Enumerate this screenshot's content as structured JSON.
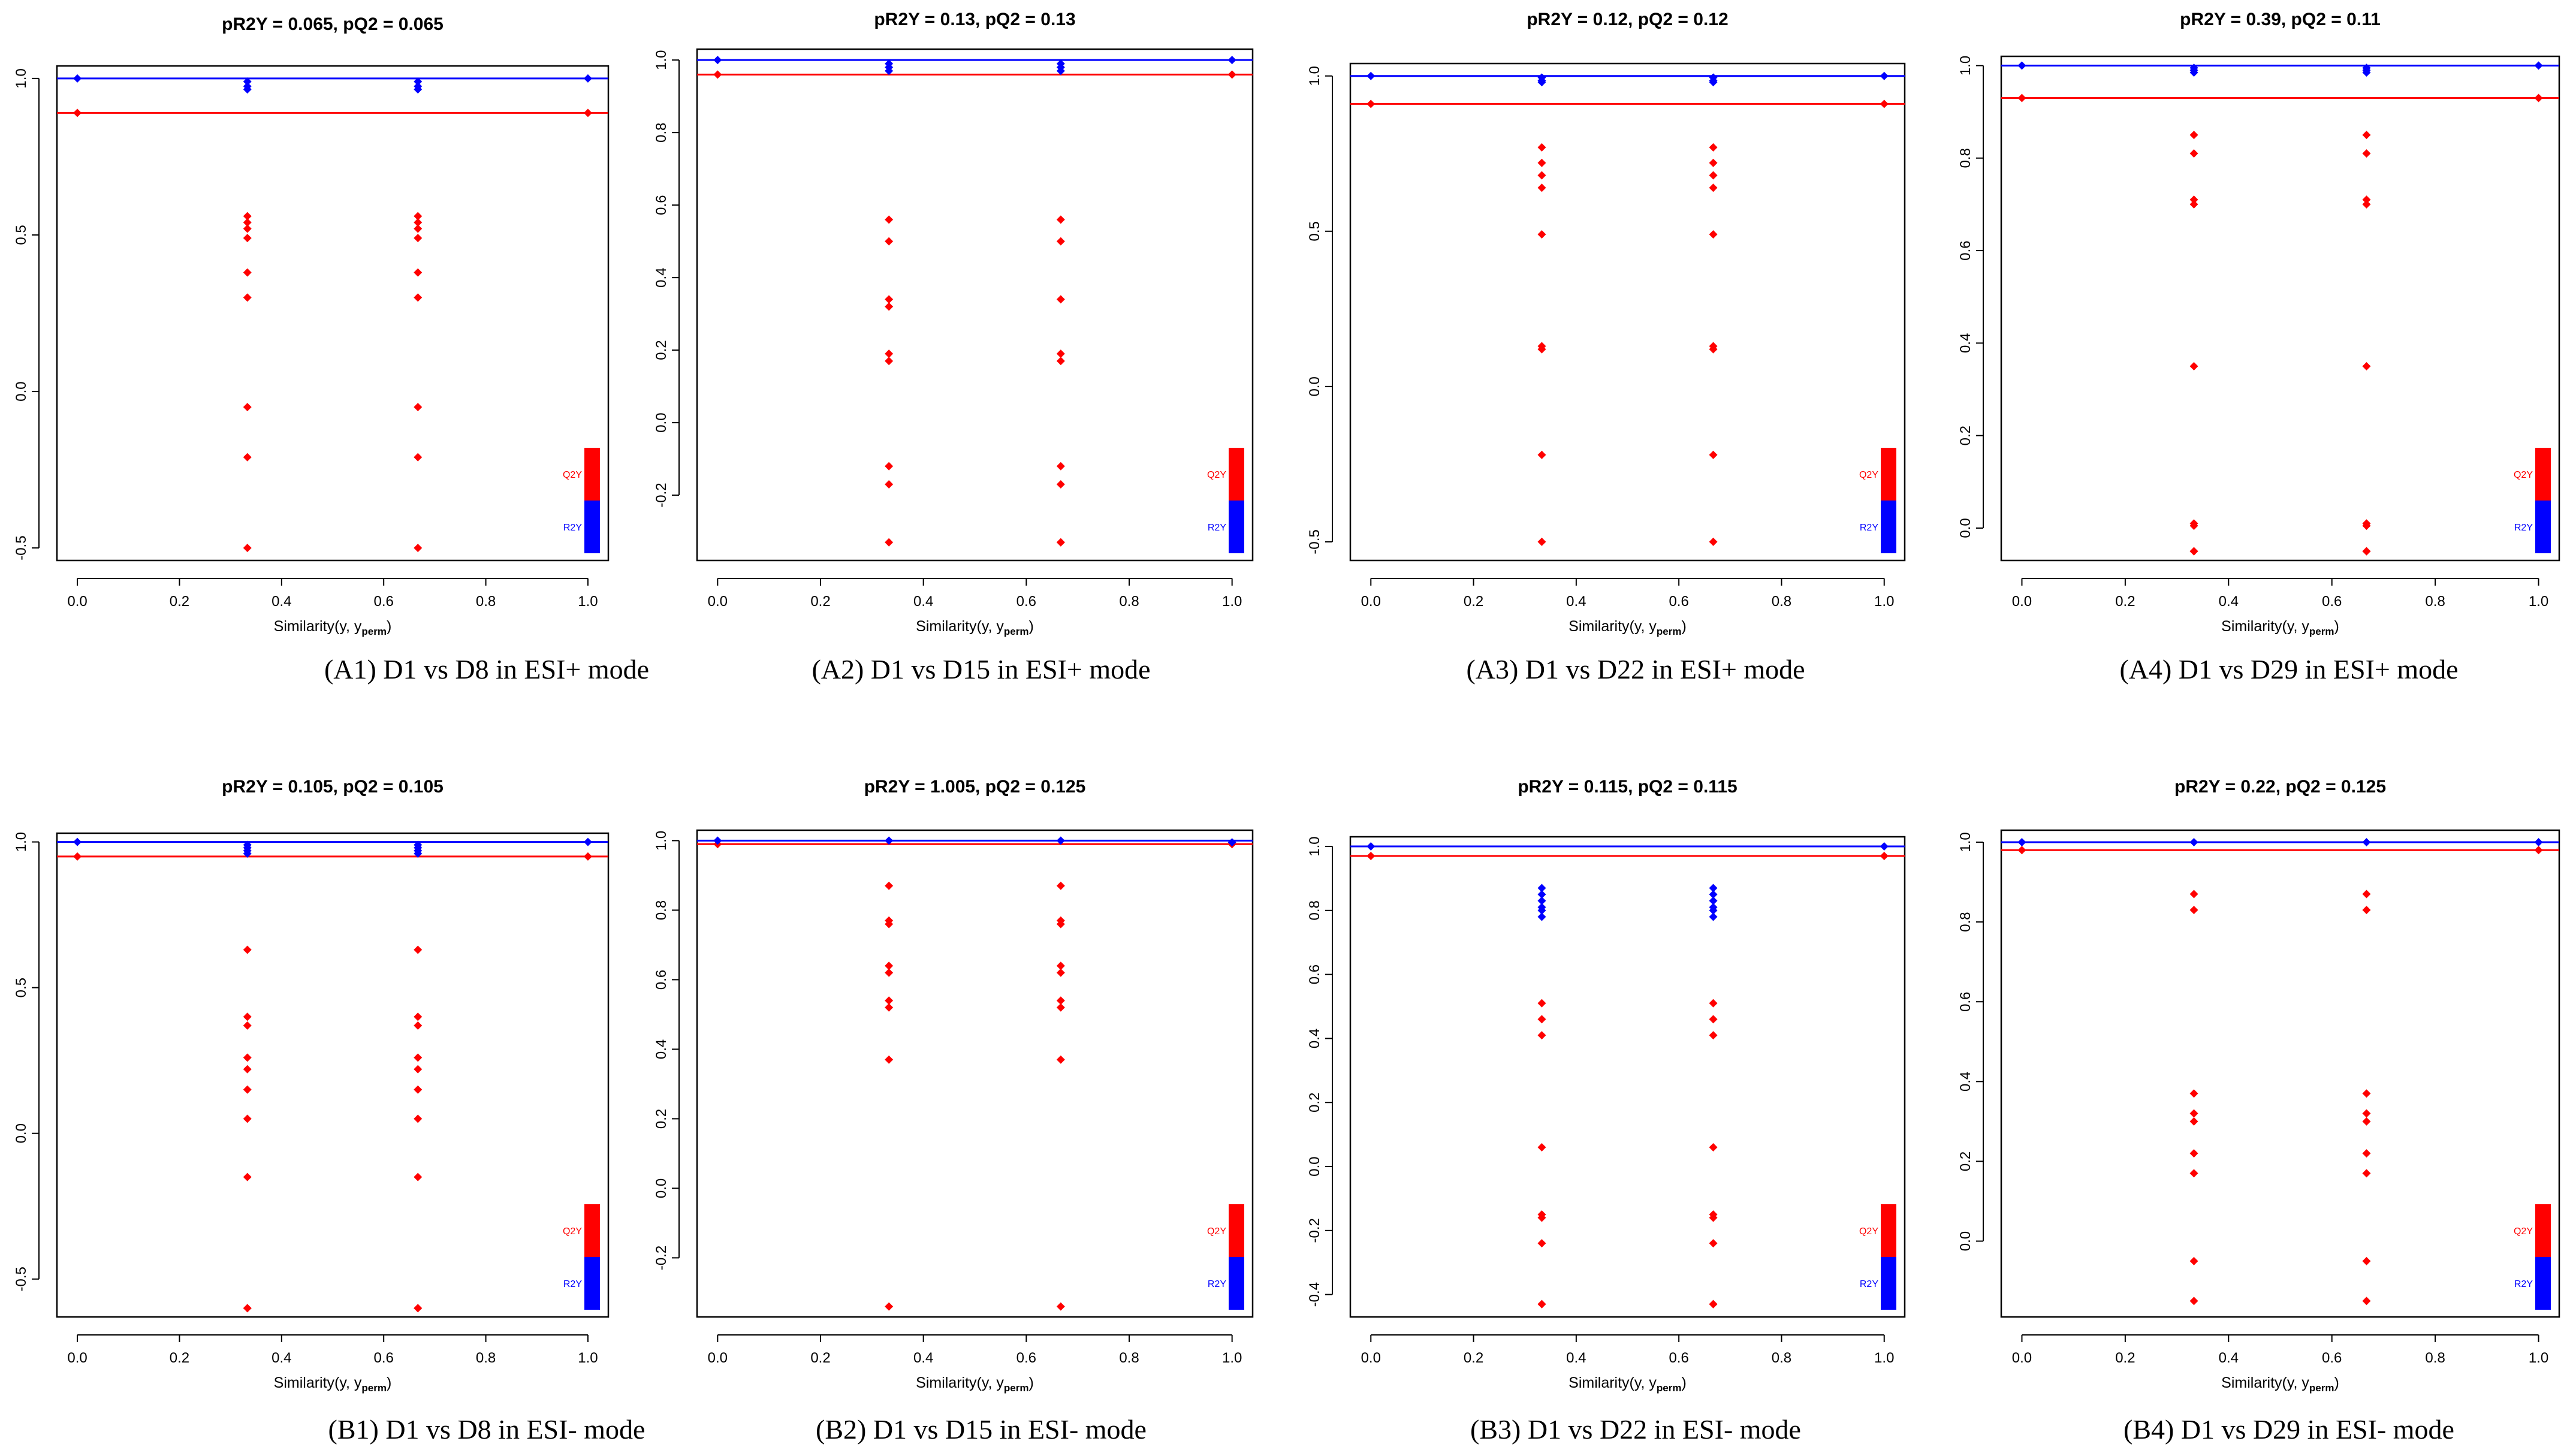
{
  "axis_label_base": "Similarity(y, y",
  "axis_label_sub": "perm",
  "axis_label_close": ")",
  "legend": {
    "q2y": "Q2Y",
    "r2y": "R2Y"
  },
  "colors": {
    "r2y": "#0000ff",
    "q2y": "#ff0000",
    "axis": "#000000"
  },
  "chart_data": [
    {
      "type": "scatter",
      "id": "A1",
      "title": "pR2Y = 0.065, pQ2 = 0.065",
      "caption": "(A1) D1 vs D8 in ESI+ mode",
      "xlabel": "Similarity(y, y_perm)",
      "xlim": [
        -0.04,
        1.04
      ],
      "ylim": [
        -0.54,
        1.04
      ],
      "xticks": [
        0,
        0.2,
        0.4,
        0.6,
        0.8,
        1
      ],
      "xtick_labels": [
        "0.0",
        "0.2",
        "0.4",
        "0.6",
        "0.8",
        "1.0"
      ],
      "yticks": [
        -0.5,
        0,
        0.5,
        1
      ],
      "ytick_labels": [
        "-0.5",
        "0.0",
        "0.5",
        "1.0"
      ],
      "r2y_line": 1.0,
      "q2y_line": 0.89,
      "r2y": {
        "x": [
          0,
          0.333,
          0.333,
          0.333,
          0.667,
          0.667,
          0.667,
          1
        ],
        "y": [
          1.0,
          0.99,
          0.975,
          0.965,
          0.99,
          0.975,
          0.965,
          1.0
        ]
      },
      "q2y": {
        "x": [
          0,
          0.333,
          0.333,
          0.333,
          0.333,
          0.333,
          0.333,
          0.333,
          0.333,
          0.333,
          0.667,
          0.667,
          0.667,
          0.667,
          0.667,
          0.667,
          0.667,
          0.667,
          0.667,
          1
        ],
        "y": [
          0.89,
          0.56,
          0.54,
          0.52,
          0.49,
          0.38,
          0.3,
          -0.05,
          -0.21,
          -0.5,
          0.56,
          0.54,
          0.52,
          0.49,
          0.38,
          0.3,
          -0.05,
          -0.21,
          -0.5,
          0.89
        ]
      }
    },
    {
      "type": "scatter",
      "id": "A2",
      "title": "pR2Y = 0.13, pQ2 = 0.13",
      "caption": "(A2) D1 vs D15 in ESI+ mode",
      "xlabel": "Similarity(y, y_perm)",
      "xlim": [
        -0.04,
        1.04
      ],
      "ylim": [
        -0.38,
        1.03
      ],
      "xticks": [
        0,
        0.2,
        0.4,
        0.6,
        0.8,
        1
      ],
      "xtick_labels": [
        "0.0",
        "0.2",
        "0.4",
        "0.6",
        "0.8",
        "1.0"
      ],
      "yticks": [
        -0.2,
        0,
        0.2,
        0.4,
        0.6,
        0.8,
        1
      ],
      "ytick_labels": [
        "-0.2",
        "0.0",
        "0.2",
        "0.4",
        "0.6",
        "0.8",
        "1.0"
      ],
      "r2y_line": 1.0,
      "q2y_line": 0.96,
      "r2y": {
        "x": [
          0,
          0.333,
          0.333,
          0.333,
          0.667,
          0.667,
          0.667,
          1
        ],
        "y": [
          1.0,
          0.99,
          0.98,
          0.97,
          0.99,
          0.98,
          0.97,
          1.0
        ]
      },
      "q2y": {
        "x": [
          0,
          0.333,
          0.333,
          0.333,
          0.333,
          0.333,
          0.333,
          0.333,
          0.333,
          0.333,
          0.667,
          0.667,
          0.667,
          0.667,
          0.667,
          0.667,
          0.667,
          0.667,
          0.667,
          1
        ],
        "y": [
          0.96,
          0.56,
          0.5,
          0.34,
          0.32,
          0.19,
          0.17,
          -0.12,
          -0.17,
          -0.33,
          0.56,
          0.5,
          0.34,
          0.19,
          0.17,
          -0.12,
          -0.17,
          -0.33,
          -0.33,
          0.96
        ]
      }
    },
    {
      "type": "scatter",
      "id": "A3",
      "title": "pR2Y = 0.12, pQ2 = 0.12",
      "caption": "(A3) D1 vs D22 in ESI+ mode",
      "xlabel": "Similarity(y, y_perm)",
      "xlim": [
        -0.04,
        1.04
      ],
      "ylim": [
        -0.56,
        1.04
      ],
      "xticks": [
        0,
        0.2,
        0.4,
        0.6,
        0.8,
        1
      ],
      "xtick_labels": [
        "0.0",
        "0.2",
        "0.4",
        "0.6",
        "0.8",
        "1.0"
      ],
      "yticks": [
        -0.5,
        0,
        0.5,
        1
      ],
      "ytick_labels": [
        "-0.5",
        "0.0",
        "0.5",
        "1.0"
      ],
      "r2y_line": 1.0,
      "q2y_line": 0.91,
      "r2y": {
        "x": [
          0,
          0.333,
          0.333,
          0.333,
          0.667,
          0.667,
          0.667,
          1
        ],
        "y": [
          1.0,
          0.995,
          0.985,
          0.98,
          0.995,
          0.985,
          0.98,
          1.0
        ]
      },
      "q2y": {
        "x": [
          0,
          0.333,
          0.333,
          0.333,
          0.333,
          0.333,
          0.333,
          0.333,
          0.333,
          0.333,
          0.667,
          0.667,
          0.667,
          0.667,
          0.667,
          0.667,
          0.667,
          0.667,
          0.667,
          1
        ],
        "y": [
          0.91,
          0.77,
          0.72,
          0.68,
          0.64,
          0.49,
          0.13,
          0.12,
          -0.22,
          -0.5,
          0.77,
          0.72,
          0.68,
          0.64,
          0.49,
          0.13,
          0.12,
          -0.22,
          -0.5,
          0.91
        ]
      }
    },
    {
      "type": "scatter",
      "id": "A4",
      "title": "pR2Y = 0.39, pQ2 = 0.11",
      "caption": "(A4) D1 vs D29 in ESI+ mode",
      "xlabel": "Similarity(y, y_perm)",
      "xlim": [
        -0.04,
        1.04
      ],
      "ylim": [
        -0.07,
        1.02
      ],
      "xticks": [
        0,
        0.2,
        0.4,
        0.6,
        0.8,
        1
      ],
      "xtick_labels": [
        "0.0",
        "0.2",
        "0.4",
        "0.6",
        "0.8",
        "1.0"
      ],
      "yticks": [
        0,
        0.2,
        0.4,
        0.6,
        0.8,
        1
      ],
      "ytick_labels": [
        "0.0",
        "0.2",
        "0.4",
        "0.6",
        "0.8",
        "1.0"
      ],
      "r2y_line": 1.0,
      "q2y_line": 0.93,
      "r2y": {
        "x": [
          0,
          0.333,
          0.333,
          0.333,
          0.667,
          0.667,
          0.667,
          1
        ],
        "y": [
          1.0,
          0.995,
          0.99,
          0.985,
          0.995,
          0.99,
          0.985,
          1.0
        ]
      },
      "q2y": {
        "x": [
          0,
          0.333,
          0.333,
          0.333,
          0.333,
          0.333,
          0.333,
          0.333,
          0.333,
          0.333,
          0.667,
          0.667,
          0.667,
          0.667,
          0.667,
          0.667,
          0.667,
          0.667,
          0.667,
          1
        ],
        "y": [
          0.93,
          0.85,
          0.81,
          0.71,
          0.7,
          0.35,
          0.01,
          0.005,
          -0.05,
          -0.05,
          0.85,
          0.81,
          0.71,
          0.7,
          0.35,
          0.01,
          0.005,
          -0.05,
          -0.05,
          0.93
        ]
      }
    },
    {
      "type": "scatter",
      "id": "B1",
      "title": "pR2Y = 0.105, pQ2 = 0.105",
      "caption": "(B1) D1 vs D8 in ESI- mode",
      "xlabel": "Similarity(y, y_perm)",
      "xlim": [
        -0.04,
        1.04
      ],
      "ylim": [
        -0.63,
        1.03
      ],
      "xticks": [
        0,
        0.2,
        0.4,
        0.6,
        0.8,
        1
      ],
      "xtick_labels": [
        "0.0",
        "0.2",
        "0.4",
        "0.6",
        "0.8",
        "1.0"
      ],
      "yticks": [
        -0.5,
        0,
        0.5,
        1
      ],
      "ytick_labels": [
        "-0.5",
        "0.0",
        "0.5",
        "1.0"
      ],
      "r2y_line": 1.0,
      "q2y_line": 0.95,
      "r2y": {
        "x": [
          0,
          0.333,
          0.333,
          0.333,
          0.333,
          0.667,
          0.667,
          0.667,
          0.667,
          1
        ],
        "y": [
          1.0,
          0.99,
          0.98,
          0.97,
          0.96,
          0.99,
          0.98,
          0.97,
          0.96,
          1.0
        ]
      },
      "q2y": {
        "x": [
          0,
          0.333,
          0.333,
          0.333,
          0.333,
          0.333,
          0.333,
          0.333,
          0.333,
          0.333,
          0.333,
          0.667,
          0.667,
          0.667,
          0.667,
          0.667,
          0.667,
          0.667,
          0.667,
          0.667,
          0.667,
          1
        ],
        "y": [
          0.95,
          0.63,
          0.4,
          0.37,
          0.26,
          0.22,
          0.15,
          0.05,
          -0.15,
          -0.6,
          -0.6,
          0.63,
          0.4,
          0.37,
          0.26,
          0.22,
          0.15,
          0.05,
          -0.15,
          -0.6,
          -0.6,
          0.95
        ]
      }
    },
    {
      "type": "scatter",
      "id": "B2",
      "title": "pR2Y = 1.005, pQ2 = 0.125",
      "caption": "(B2) D1 vs D15 in ESI- mode",
      "xlabel": "Similarity(y, y_perm)",
      "xlim": [
        -0.04,
        1.04
      ],
      "ylim": [
        -0.37,
        1.03
      ],
      "xticks": [
        0,
        0.2,
        0.4,
        0.6,
        0.8,
        1
      ],
      "xtick_labels": [
        "0.0",
        "0.2",
        "0.4",
        "0.6",
        "0.8",
        "1.0"
      ],
      "yticks": [
        -0.2,
        0,
        0.2,
        0.4,
        0.6,
        0.8,
        1
      ],
      "ytick_labels": [
        "-0.2",
        "0.0",
        "0.2",
        "0.4",
        "0.6",
        "0.8",
        "1.0"
      ],
      "r2y_line": 1.0,
      "q2y_line": 0.99,
      "r2y": {
        "x": [
          0,
          0.333,
          0.667,
          1
        ],
        "y": [
          1.0,
          1.0,
          1.0,
          0.995
        ]
      },
      "q2y": {
        "x": [
          0,
          0.333,
          0.333,
          0.333,
          0.333,
          0.333,
          0.333,
          0.333,
          0.333,
          0.333,
          0.667,
          0.667,
          0.667,
          0.667,
          0.667,
          0.667,
          0.667,
          0.667,
          0.667,
          1
        ],
        "y": [
          0.99,
          0.87,
          0.77,
          0.76,
          0.64,
          0.62,
          0.54,
          0.52,
          0.37,
          -0.34,
          0.87,
          0.77,
          0.76,
          0.64,
          0.62,
          0.54,
          0.52,
          0.37,
          -0.34,
          0.99
        ]
      }
    },
    {
      "type": "scatter",
      "id": "B3",
      "title": "pR2Y = 0.115, pQ2 = 0.115",
      "caption": "(B3) D1 vs D22 in ESI- mode",
      "xlabel": "Similarity(y, y_perm)",
      "xlim": [
        -0.04,
        1.04
      ],
      "ylim": [
        -0.47,
        1.03
      ],
      "xticks": [
        0,
        0.2,
        0.4,
        0.6,
        0.8,
        1
      ],
      "xtick_labels": [
        "0.0",
        "0.2",
        "0.4",
        "0.6",
        "0.8",
        "1.0"
      ],
      "yticks": [
        -0.4,
        -0.2,
        0,
        0.2,
        0.4,
        0.6,
        0.8,
        1
      ],
      "ytick_labels": [
        "-0.4",
        "-0.2",
        "0.0",
        "0.2",
        "0.4",
        "0.6",
        "0.8",
        "1.0"
      ],
      "r2y_line": 1.0,
      "q2y_line": 0.97,
      "r2y": {
        "x": [
          0,
          0.333,
          0.333,
          0.333,
          0.333,
          0.333,
          0.333,
          0.667,
          0.667,
          0.667,
          0.667,
          0.667,
          0.667,
          1
        ],
        "y": [
          1.0,
          0.87,
          0.85,
          0.83,
          0.81,
          0.8,
          0.78,
          0.87,
          0.85,
          0.83,
          0.81,
          0.8,
          0.78,
          1.0
        ]
      },
      "q2y": {
        "x": [
          0,
          0.333,
          0.333,
          0.333,
          0.333,
          0.333,
          0.333,
          0.333,
          0.333,
          0.333,
          0.667,
          0.667,
          0.667,
          0.667,
          0.667,
          0.667,
          0.667,
          0.667,
          0.667,
          1
        ],
        "y": [
          0.97,
          0.51,
          0.46,
          0.41,
          0.06,
          -0.15,
          -0.16,
          -0.24,
          -0.43,
          -0.43,
          0.51,
          0.46,
          0.41,
          0.06,
          -0.15,
          -0.16,
          -0.24,
          -0.43,
          -0.43,
          0.97
        ]
      }
    },
    {
      "type": "scatter",
      "id": "B4",
      "title": "pR2Y = 0.22, pQ2 = 0.125",
      "caption": "(B4) D1 vs D29 in ESI- mode",
      "xlabel": "Similarity(y, y_perm)",
      "xlim": [
        -0.04,
        1.04
      ],
      "ylim": [
        -0.19,
        1.03
      ],
      "xticks": [
        0,
        0.2,
        0.4,
        0.6,
        0.8,
        1
      ],
      "xtick_labels": [
        "0.0",
        "0.2",
        "0.4",
        "0.6",
        "0.8",
        "1.0"
      ],
      "yticks": [
        0,
        0.2,
        0.4,
        0.6,
        0.8,
        1
      ],
      "ytick_labels": [
        "0.0",
        "0.2",
        "0.4",
        "0.6",
        "0.8",
        "1.0"
      ],
      "r2y_line": 1.0,
      "q2y_line": 0.98,
      "r2y": {
        "x": [
          0,
          0.333,
          0.667,
          1
        ],
        "y": [
          1.0,
          1.0,
          1.0,
          1.0
        ]
      },
      "q2y": {
        "x": [
          0,
          0.333,
          0.333,
          0.333,
          0.333,
          0.333,
          0.333,
          0.333,
          0.333,
          0.333,
          0.667,
          0.667,
          0.667,
          0.667,
          0.667,
          0.667,
          0.667,
          0.667,
          0.667,
          1
        ],
        "y": [
          0.98,
          0.87,
          0.83,
          0.37,
          0.32,
          0.3,
          0.22,
          0.17,
          -0.05,
          -0.15,
          0.87,
          0.83,
          0.37,
          0.32,
          0.3,
          0.22,
          0.17,
          -0.05,
          -0.15,
          0.98
        ]
      }
    }
  ]
}
